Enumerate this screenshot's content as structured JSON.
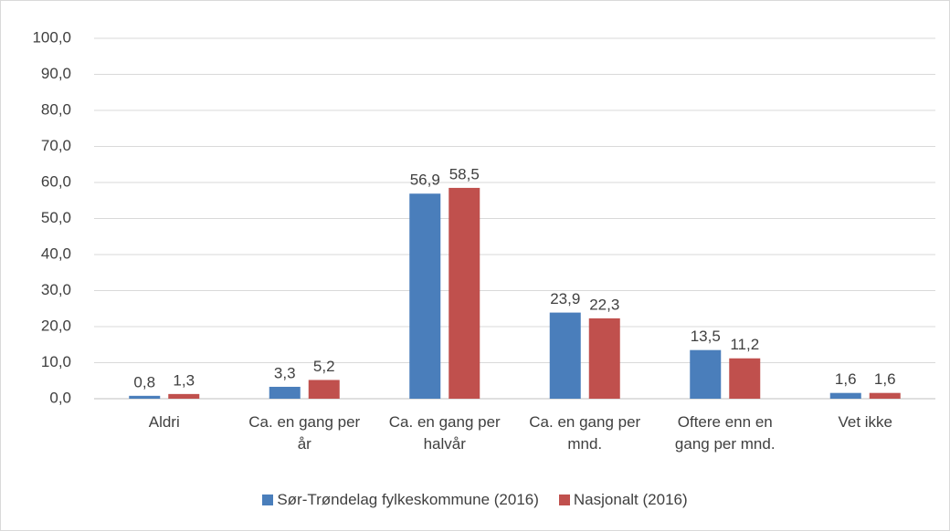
{
  "chart_data": {
    "type": "bar",
    "categories": [
      "Aldri",
      "Ca. en gang per år",
      "Ca. en gang per halvår",
      "Ca. en gang per mnd.",
      "Oftere enn en gang per mnd.",
      "Vet ikke"
    ],
    "series": [
      {
        "name": "Sør-Trøndelag fylkeskommune (2016)",
        "color": "#4a7ebb",
        "values": [
          0.8,
          3.3,
          56.9,
          23.9,
          13.5,
          1.6
        ],
        "value_labels": [
          "0,8",
          "3,3",
          "56,9",
          "23,9",
          "13,5",
          "1,6"
        ]
      },
      {
        "name": "Nasjonalt (2016)",
        "color": "#c0504d",
        "values": [
          1.3,
          5.2,
          58.5,
          22.3,
          11.2,
          1.6
        ],
        "value_labels": [
          "1,3",
          "5,2",
          "58,5",
          "22,3",
          "11,2",
          "1,6"
        ]
      }
    ],
    "ylim": [
      0,
      100
    ],
    "yticks": [
      {
        "value": 0,
        "label": "0,0"
      },
      {
        "value": 10,
        "label": "10,0"
      },
      {
        "value": 20,
        "label": "20,0"
      },
      {
        "value": 30,
        "label": "30,0"
      },
      {
        "value": 40,
        "label": "40,0"
      },
      {
        "value": 50,
        "label": "50,0"
      },
      {
        "value": 60,
        "label": "60,0"
      },
      {
        "value": 70,
        "label": "70,0"
      },
      {
        "value": 80,
        "label": "80,0"
      },
      {
        "value": 90,
        "label": "90,0"
      },
      {
        "value": 100,
        "label": "100,0"
      }
    ],
    "grid": true,
    "legend": "bottom"
  }
}
